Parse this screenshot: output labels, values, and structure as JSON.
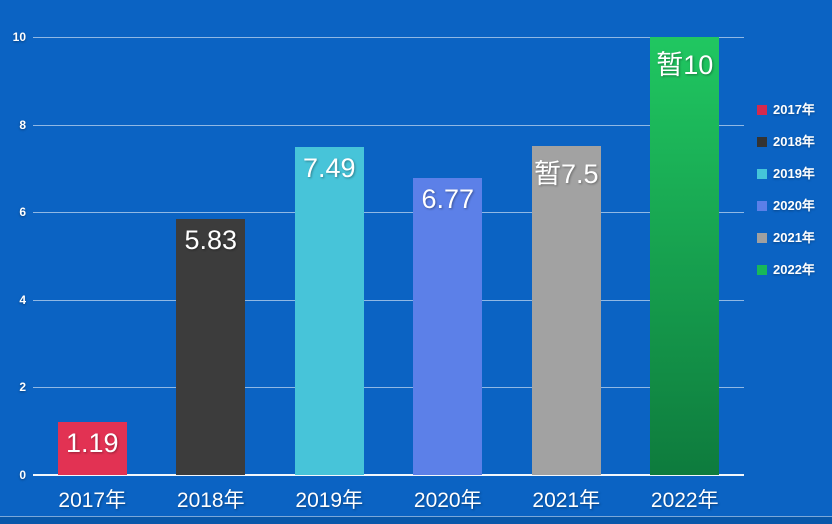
{
  "chart_data": {
    "type": "bar",
    "title": "",
    "xlabel": "",
    "ylabel": "",
    "categories": [
      "2017年",
      "2018年",
      "2019年",
      "2020年",
      "2021年",
      "2022年"
    ],
    "values": [
      1.19,
      5.83,
      7.49,
      6.77,
      7.5,
      10
    ],
    "value_labels": [
      "1.19",
      "5.83",
      "7.49",
      "6.77",
      "暂7.5",
      "暂10"
    ],
    "bar_styles": [
      {
        "type": "solid",
        "color": "#e23253"
      },
      {
        "type": "solid",
        "color": "#3c3c3c"
      },
      {
        "type": "solid",
        "color": "#47c4d9"
      },
      {
        "type": "solid",
        "color": "#5c80e8"
      },
      {
        "type": "solid",
        "color": "#a2a2a2"
      },
      {
        "type": "gradient",
        "from": "#20c761",
        "to": "#0e7b3d"
      }
    ],
    "ylim": [
      0,
      10
    ],
    "yticks": [
      0,
      2,
      4,
      6,
      8,
      10
    ],
    "ytick_labels": [
      "0",
      "2",
      "4",
      "6",
      "8",
      "10"
    ],
    "grid": true,
    "legend": {
      "position": "right",
      "entries": [
        {
          "label": "2017年",
          "color": "#d42a4e"
        },
        {
          "label": "2018年",
          "color": "#333333"
        },
        {
          "label": "2019年",
          "color": "#45c5d9"
        },
        {
          "label": "2020年",
          "color": "#5b7fe8"
        },
        {
          "label": "2021年",
          "color": "#a0a0a0"
        },
        {
          "label": "2022年",
          "color": "#18b85a"
        }
      ]
    },
    "colors": {
      "background": "#0b63c3",
      "gridline": "rgba(255,255,255,0.55)",
      "axis_line": "#f2f6fc",
      "text": "#ffffff",
      "bottom_strip": "#0857a9"
    }
  }
}
